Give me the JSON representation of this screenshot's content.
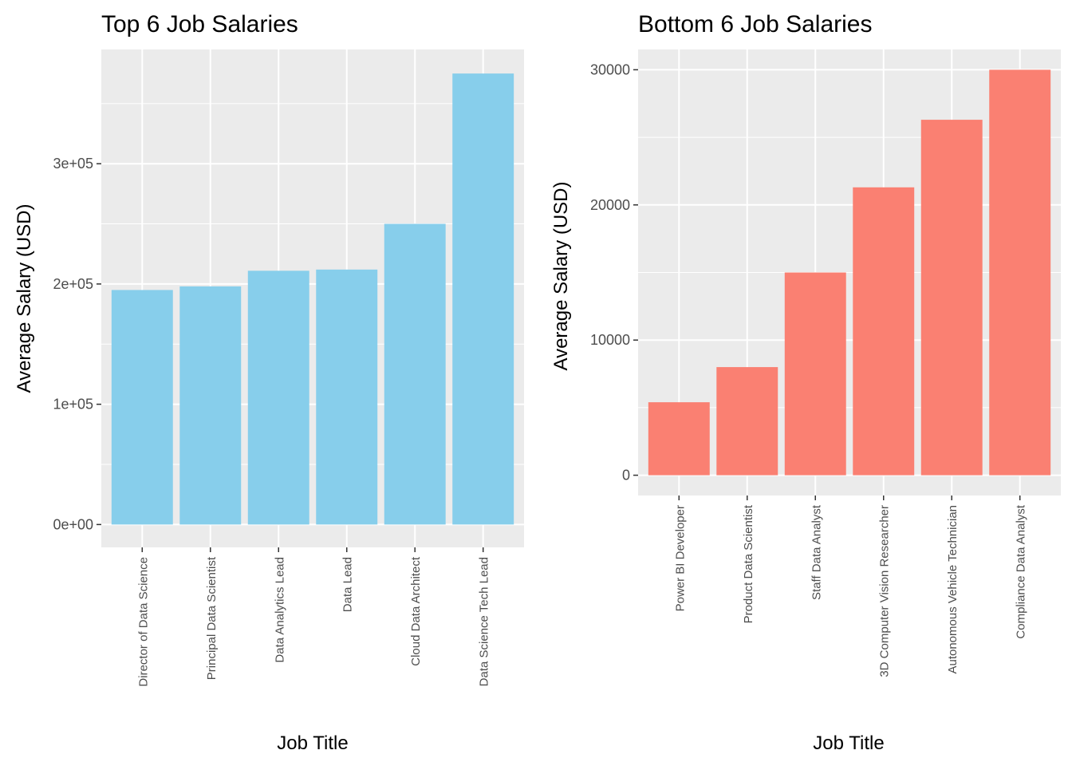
{
  "chart_data": [
    {
      "type": "bar",
      "title": "Top 6 Job Salaries",
      "xlabel": "Job Title",
      "ylabel": "Average Salary (USD)",
      "categories": [
        "Director of Data Science",
        "Principal Data Scientist",
        "Data Analytics Lead",
        "Data Lead",
        "Cloud Data Architect",
        "Data Science Tech Lead"
      ],
      "values": [
        195000,
        198000,
        211000,
        212000,
        250000,
        375000
      ],
      "ylim": [
        -19000,
        395000
      ],
      "yticks": [
        0,
        100000,
        200000,
        300000
      ],
      "ytick_labels": [
        "0e+00",
        "1e+05",
        "2e+05",
        "3e+05"
      ],
      "bar_color": "#87CEEB",
      "panel_bg": "#EBEBEB",
      "grid": true
    },
    {
      "type": "bar",
      "title": "Bottom 6 Job Salaries",
      "xlabel": "Job Title",
      "ylabel": "Average Salary (USD)",
      "categories": [
        "Power BI Developer",
        "Product Data Scientist",
        "Staff Data Analyst",
        "3D Computer Vision Researcher",
        "Autonomous Vehicle Technician",
        "Compliance Data Analyst"
      ],
      "values": [
        5400,
        8000,
        15000,
        21300,
        26300,
        30000
      ],
      "ylim": [
        -1500,
        31500
      ],
      "yticks": [
        0,
        10000,
        20000,
        30000
      ],
      "ytick_labels": [
        "0",
        "10000",
        "20000",
        "30000"
      ],
      "bar_color": "#FA8072",
      "panel_bg": "#EBEBEB",
      "grid": true
    }
  ]
}
